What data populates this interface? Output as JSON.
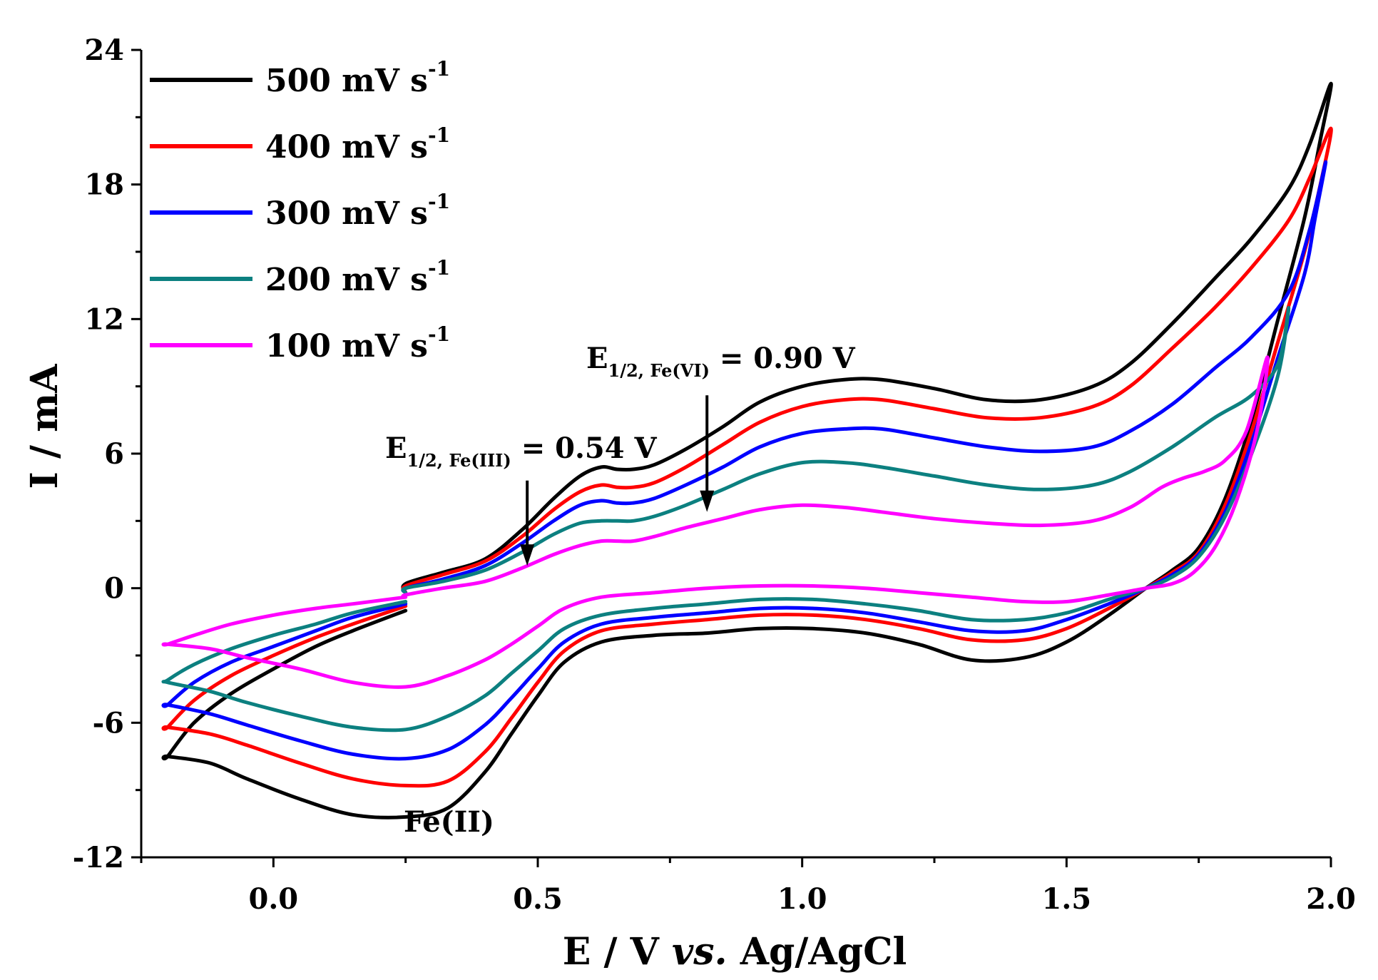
{
  "chart_data": {
    "type": "line",
    "title": "",
    "xlabel_parts": [
      "E / V ",
      "vs.",
      " Ag/AgCl"
    ],
    "ylabel": "I / mA",
    "xlim": [
      -0.25,
      2.0
    ],
    "ylim": [
      -12,
      24
    ],
    "x_ticks": [
      0.0,
      0.5,
      1.0,
      1.5,
      2.0
    ],
    "x_tick_labels": [
      "0.0",
      "0.5",
      "1.0",
      "1.5",
      "2.0"
    ],
    "y_ticks": [
      -12,
      -6,
      0,
      6,
      12,
      18,
      24
    ],
    "y_tick_labels": [
      "-12",
      "-6",
      "0",
      "6",
      "12",
      "18",
      "24"
    ],
    "grid": false,
    "legend": {
      "position": "top-left",
      "unit_base": "mV s",
      "unit_sup": "-1"
    },
    "series": [
      {
        "name": "500",
        "color": "#000000",
        "x": [
          0.25,
          0.25,
          0.32,
          0.4,
          0.47,
          0.53,
          0.58,
          0.62,
          0.65,
          0.68,
          0.72,
          0.78,
          0.85,
          0.92,
          1.0,
          1.08,
          1.15,
          1.25,
          1.35,
          1.45,
          1.55,
          1.62,
          1.7,
          1.78,
          1.85,
          1.92,
          1.96,
          2.0,
          1.98,
          1.95,
          1.9,
          1.85,
          1.8,
          1.75,
          1.7,
          1.65,
          1.58,
          1.5,
          1.42,
          1.32,
          1.22,
          1.12,
          1.02,
          0.92,
          0.82,
          0.72,
          0.62,
          0.55,
          0.5,
          0.45,
          0.4,
          0.33,
          0.25,
          0.15,
          0.05,
          -0.05,
          -0.12,
          -0.2,
          -0.2,
          -0.15,
          -0.08,
          0.0,
          0.08,
          0.15,
          0.25
        ],
        "y": [
          -0.2,
          0.2,
          0.7,
          1.3,
          2.6,
          4.0,
          5.0,
          5.4,
          5.3,
          5.3,
          5.5,
          6.2,
          7.2,
          8.3,
          9.0,
          9.3,
          9.3,
          8.9,
          8.4,
          8.4,
          9.0,
          10.0,
          11.8,
          13.8,
          15.6,
          17.8,
          19.8,
          22.5,
          20.0,
          16.5,
          12.0,
          7.5,
          4.0,
          1.8,
          0.8,
          0.0,
          -1.2,
          -2.4,
          -3.1,
          -3.2,
          -2.5,
          -2.0,
          -1.8,
          -1.8,
          -2.0,
          -2.1,
          -2.4,
          -3.3,
          -4.8,
          -6.5,
          -8.2,
          -9.8,
          -10.2,
          -10.1,
          -9.4,
          -8.5,
          -7.8,
          -7.5,
          -7.5,
          -6.0,
          -4.7,
          -3.6,
          -2.6,
          -1.9,
          -1.0
        ]
      },
      {
        "name": "400",
        "color": "#ff0000",
        "x": [
          0.25,
          0.25,
          0.32,
          0.4,
          0.47,
          0.53,
          0.58,
          0.62,
          0.65,
          0.68,
          0.72,
          0.78,
          0.85,
          0.92,
          1.0,
          1.08,
          1.15,
          1.25,
          1.35,
          1.45,
          1.55,
          1.62,
          1.7,
          1.78,
          1.85,
          1.92,
          1.96,
          2.0,
          1.98,
          1.95,
          1.9,
          1.85,
          1.8,
          1.75,
          1.7,
          1.65,
          1.58,
          1.5,
          1.42,
          1.32,
          1.22,
          1.12,
          1.02,
          0.92,
          0.82,
          0.72,
          0.62,
          0.55,
          0.5,
          0.45,
          0.4,
          0.33,
          0.25,
          0.15,
          0.05,
          -0.05,
          -0.12,
          -0.2,
          -0.2,
          -0.15,
          -0.08,
          0.0,
          0.08,
          0.15,
          0.25
        ],
        "y": [
          -0.2,
          0.1,
          0.6,
          1.2,
          2.3,
          3.5,
          4.3,
          4.6,
          4.5,
          4.5,
          4.7,
          5.4,
          6.4,
          7.4,
          8.1,
          8.4,
          8.4,
          8.0,
          7.6,
          7.6,
          8.1,
          9.0,
          10.7,
          12.5,
          14.3,
          16.4,
          18.3,
          20.5,
          18.0,
          15.0,
          11.0,
          7.0,
          3.7,
          1.6,
          0.7,
          0.0,
          -0.9,
          -1.8,
          -2.3,
          -2.3,
          -1.8,
          -1.4,
          -1.2,
          -1.2,
          -1.4,
          -1.6,
          -1.9,
          -2.8,
          -4.2,
          -5.8,
          -7.3,
          -8.6,
          -8.8,
          -8.5,
          -7.8,
          -7.0,
          -6.5,
          -6.2,
          -6.2,
          -5.0,
          -3.9,
          -3.0,
          -2.2,
          -1.6,
          -0.8
        ]
      },
      {
        "name": "300",
        "color": "#0000ff",
        "x": [
          0.25,
          0.25,
          0.32,
          0.4,
          0.47,
          0.53,
          0.58,
          0.62,
          0.65,
          0.68,
          0.72,
          0.78,
          0.85,
          0.92,
          1.0,
          1.08,
          1.15,
          1.25,
          1.35,
          1.45,
          1.55,
          1.62,
          1.7,
          1.78,
          1.85,
          1.92,
          1.96,
          1.99,
          1.97,
          1.95,
          1.9,
          1.85,
          1.8,
          1.75,
          1.7,
          1.65,
          1.58,
          1.5,
          1.42,
          1.32,
          1.22,
          1.12,
          1.02,
          0.92,
          0.82,
          0.72,
          0.62,
          0.55,
          0.5,
          0.45,
          0.4,
          0.33,
          0.25,
          0.15,
          0.05,
          -0.05,
          -0.12,
          -0.2,
          -0.2,
          -0.15,
          -0.08,
          0.0,
          0.08,
          0.15,
          0.25
        ],
        "y": [
          -0.2,
          0.0,
          0.4,
          1.0,
          2.0,
          3.0,
          3.7,
          3.9,
          3.8,
          3.8,
          4.0,
          4.6,
          5.4,
          6.3,
          6.9,
          7.1,
          7.1,
          6.7,
          6.3,
          6.1,
          6.3,
          7.0,
          8.2,
          9.8,
          11.2,
          13.2,
          16.0,
          19.0,
          16.5,
          14.0,
          10.3,
          6.5,
          3.4,
          1.5,
          0.6,
          0.0,
          -0.7,
          -1.4,
          -1.9,
          -1.9,
          -1.5,
          -1.1,
          -0.9,
          -0.9,
          -1.1,
          -1.3,
          -1.6,
          -2.4,
          -3.6,
          -4.9,
          -6.1,
          -7.2,
          -7.6,
          -7.4,
          -6.8,
          -6.1,
          -5.6,
          -5.2,
          -5.2,
          -4.2,
          -3.3,
          -2.6,
          -1.9,
          -1.3,
          -0.7
        ]
      },
      {
        "name": "200",
        "color": "#0c8080",
        "x": [
          0.25,
          0.25,
          0.32,
          0.4,
          0.47,
          0.53,
          0.58,
          0.62,
          0.65,
          0.68,
          0.72,
          0.78,
          0.85,
          0.92,
          1.0,
          1.08,
          1.15,
          1.25,
          1.35,
          1.45,
          1.55,
          1.62,
          1.7,
          1.78,
          1.85,
          1.9,
          1.92,
          1.9,
          1.85,
          1.8,
          1.75,
          1.7,
          1.65,
          1.58,
          1.5,
          1.42,
          1.32,
          1.22,
          1.12,
          1.02,
          0.92,
          0.82,
          0.72,
          0.62,
          0.55,
          0.5,
          0.45,
          0.4,
          0.33,
          0.25,
          0.15,
          0.05,
          -0.05,
          -0.12,
          -0.2,
          -0.2,
          -0.15,
          -0.08,
          0.0,
          0.08,
          0.15,
          0.25
        ],
        "y": [
          -0.2,
          0.0,
          0.3,
          0.8,
          1.6,
          2.4,
          2.9,
          3.0,
          3.0,
          3.0,
          3.2,
          3.7,
          4.4,
          5.1,
          5.6,
          5.6,
          5.4,
          5.0,
          4.6,
          4.4,
          4.6,
          5.2,
          6.3,
          7.6,
          8.6,
          10.0,
          12.5,
          9.5,
          6.0,
          3.2,
          1.4,
          0.5,
          0.0,
          -0.5,
          -1.1,
          -1.4,
          -1.4,
          -1.0,
          -0.7,
          -0.5,
          -0.5,
          -0.7,
          -0.9,
          -1.2,
          -1.8,
          -2.8,
          -3.8,
          -4.8,
          -5.7,
          -6.3,
          -6.2,
          -5.7,
          -5.1,
          -4.6,
          -4.2,
          -4.1,
          -3.4,
          -2.7,
          -2.1,
          -1.6,
          -1.1,
          -0.6
        ]
      },
      {
        "name": "100",
        "color": "#ff00ff",
        "x": [
          0.25,
          0.25,
          0.32,
          0.4,
          0.47,
          0.53,
          0.58,
          0.62,
          0.65,
          0.68,
          0.72,
          0.78,
          0.85,
          0.92,
          1.0,
          1.08,
          1.15,
          1.25,
          1.35,
          1.45,
          1.55,
          1.62,
          1.68,
          1.72,
          1.76,
          1.8,
          1.84,
          1.88,
          1.86,
          1.82,
          1.78,
          1.74,
          1.7,
          1.65,
          1.58,
          1.5,
          1.42,
          1.32,
          1.22,
          1.12,
          1.02,
          0.92,
          0.82,
          0.72,
          0.62,
          0.55,
          0.5,
          0.45,
          0.4,
          0.33,
          0.25,
          0.15,
          0.05,
          -0.05,
          -0.12,
          -0.2,
          -0.2,
          -0.15,
          -0.08,
          0.0,
          0.08,
          0.15,
          0.25
        ],
        "y": [
          -0.4,
          -0.3,
          0.0,
          0.3,
          0.9,
          1.5,
          1.9,
          2.1,
          2.1,
          2.1,
          2.3,
          2.7,
          3.1,
          3.5,
          3.7,
          3.6,
          3.4,
          3.1,
          2.9,
          2.8,
          3.0,
          3.6,
          4.5,
          4.9,
          5.2,
          5.7,
          7.0,
          10.3,
          7.0,
          3.8,
          1.8,
          0.7,
          0.2,
          0.0,
          -0.3,
          -0.6,
          -0.6,
          -0.4,
          -0.2,
          0.0,
          0.1,
          0.1,
          0.0,
          -0.2,
          -0.4,
          -0.9,
          -1.7,
          -2.5,
          -3.2,
          -3.9,
          -4.4,
          -4.2,
          -3.6,
          -3.1,
          -2.7,
          -2.5,
          -2.5,
          -2.1,
          -1.6,
          -1.2,
          -0.9,
          -0.7,
          -0.4
        ]
      }
    ],
    "annotations": [
      {
        "label_main": "E",
        "label_sub": "1/2, Fe(III)",
        "label_rest": " = 0.54 V",
        "arrow_x": 0.48,
        "arrow_y_start": 4.8,
        "arrow_y_end": 1.0
      },
      {
        "label_main": "E",
        "label_sub": "1/2, Fe(VI)",
        "label_rest": " = 0.90 V",
        "arrow_x": 0.82,
        "arrow_y_start": 8.6,
        "arrow_y_end": 3.4
      },
      {
        "text": "Fe(II)",
        "x": 0.24,
        "y": -10.5
      }
    ]
  }
}
